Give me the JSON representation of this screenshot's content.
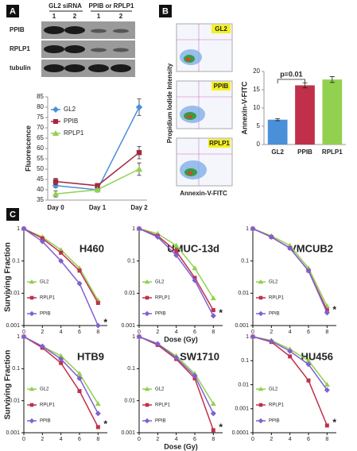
{
  "panels": [
    "A",
    "B",
    "C"
  ],
  "blot": {
    "group_labels": [
      "GL2 siRNA",
      "PPIB or RPLP1"
    ],
    "lanes": [
      "1",
      "2",
      "1",
      "2"
    ],
    "rows": [
      "PPIB",
      "RPLP1",
      "tubulin"
    ]
  },
  "flow": {
    "samples": [
      "GL2",
      "PPIB",
      "RPLP1"
    ],
    "ylabel": "Propidium Iodide Intensity",
    "xlabel": "Annexin-V-FITC"
  },
  "chart_data": [
    {
      "type": "line",
      "categories": [
        "Day 0",
        "Day 1",
        "Day 2"
      ],
      "ylim": [
        35,
        85
      ],
      "yticks": [
        35,
        40,
        45,
        50,
        55,
        60,
        65,
        70,
        75,
        80,
        85
      ],
      "ylabel": "Fluorescence",
      "series": [
        {
          "name": "GL2",
          "color": "#4a90d9",
          "marker": "diamond",
          "values": [
            42,
            40,
            80
          ],
          "errors": [
            1,
            1,
            4
          ]
        },
        {
          "name": "PPIB",
          "color": "#a6263f",
          "marker": "square",
          "values": [
            44,
            42,
            58
          ],
          "errors": [
            1.5,
            1,
            3
          ]
        },
        {
          "name": "RPLP1",
          "color": "#92d050",
          "marker": "triangle",
          "values": [
            38,
            40,
            50
          ],
          "errors": [
            1.5,
            1,
            3
          ]
        }
      ]
    },
    {
      "type": "bar",
      "categories": [
        "GL2",
        "PPIB",
        "RPLP1"
      ],
      "values": [
        6.8,
        16.2,
        17.8
      ],
      "errors": [
        0.3,
        0.7,
        0.8
      ],
      "colors": [
        "#4a90d9",
        "#c0304a",
        "#92d050"
      ],
      "ylim": [
        0,
        20
      ],
      "yticks": [
        0,
        5,
        10,
        15,
        20
      ],
      "ylabel": "Annexin-V-FITC",
      "annotation": "p=0.01"
    },
    {
      "type": "line",
      "title": "H460",
      "x": [
        0,
        2,
        4,
        6,
        8
      ],
      "xlim": [
        0,
        9
      ],
      "xticks": [
        0,
        2,
        4,
        6,
        8
      ],
      "ylim": [
        0.001,
        1
      ],
      "yticks": [
        1,
        0.1,
        0.01,
        0.001
      ],
      "log_scale": true,
      "ylabel": "Surviving Fraction",
      "annotation": "*",
      "series": [
        {
          "name": "GL2",
          "color": "#92d050",
          "marker": "triangle",
          "values": [
            1,
            0.55,
            0.22,
            0.06,
            0.006
          ]
        },
        {
          "name": "RPLP1",
          "color": "#c0304a",
          "marker": "square",
          "values": [
            1,
            0.5,
            0.18,
            0.05,
            0.005
          ]
        },
        {
          "name": "PPIB",
          "color": "#8060d0",
          "marker": "diamond",
          "values": [
            1,
            0.4,
            0.1,
            0.02,
            0.001
          ]
        }
      ]
    },
    {
      "type": "line",
      "title": "UMUC-13d",
      "x": [
        0,
        2,
        4,
        6,
        8
      ],
      "xlim": [
        0,
        9
      ],
      "xticks": [
        0,
        2,
        4,
        6,
        8
      ],
      "ylim": [
        0.001,
        1
      ],
      "yticks": [
        1,
        0.1,
        0.01,
        0.001
      ],
      "log_scale": true,
      "xlabel": "Dose (Gy)",
      "annotation": "*",
      "series": [
        {
          "name": "GL2",
          "color": "#92d050",
          "marker": "triangle",
          "values": [
            1,
            0.7,
            0.3,
            0.06,
            0.007
          ]
        },
        {
          "name": "RPLP1",
          "color": "#c0304a",
          "marker": "square",
          "values": [
            1,
            0.6,
            0.2,
            0.03,
            0.003
          ]
        },
        {
          "name": "PPIB",
          "color": "#8060d0",
          "marker": "diamond",
          "values": [
            1,
            0.55,
            0.15,
            0.025,
            0.002
          ]
        }
      ]
    },
    {
      "type": "line",
      "title": "VMCUB2",
      "x": [
        0,
        2,
        4,
        6,
        8
      ],
      "xlim": [
        0,
        9
      ],
      "xticks": [
        0,
        2,
        4,
        6,
        8
      ],
      "ylim": [
        0.001,
        1
      ],
      "yticks": [
        1,
        0.1,
        0.01,
        0.001
      ],
      "log_scale": true,
      "annotation": "*",
      "series": [
        {
          "name": "GL2",
          "color": "#92d050",
          "marker": "triangle",
          "values": [
            1,
            0.6,
            0.3,
            0.06,
            0.004
          ]
        },
        {
          "name": "RPLP1",
          "color": "#c0304a",
          "marker": "square",
          "values": [
            1,
            0.55,
            0.25,
            0.05,
            0.003
          ]
        },
        {
          "name": "PPIB",
          "color": "#8060d0",
          "marker": "diamond",
          "values": [
            1,
            0.55,
            0.25,
            0.05,
            0.0025
          ]
        }
      ]
    },
    {
      "type": "line",
      "title": "HTB9",
      "x": [
        0,
        2,
        4,
        6,
        8
      ],
      "xlim": [
        0,
        9
      ],
      "xticks": [
        0,
        2,
        4,
        6,
        8
      ],
      "ylim": [
        0.001,
        1
      ],
      "yticks": [
        1,
        0.1,
        0.01,
        0.001
      ],
      "log_scale": true,
      "ylabel": "Surviving Fraction",
      "annotation": "*",
      "series": [
        {
          "name": "GL2",
          "color": "#92d050",
          "marker": "triangle",
          "values": [
            1,
            0.5,
            0.25,
            0.07,
            0.008
          ]
        },
        {
          "name": "RPLP1",
          "color": "#c0304a",
          "marker": "square",
          "values": [
            1,
            0.45,
            0.15,
            0.02,
            0.0015
          ]
        },
        {
          "name": "PPIB",
          "color": "#8060d0",
          "marker": "diamond",
          "values": [
            1,
            0.5,
            0.2,
            0.05,
            0.004
          ]
        }
      ]
    },
    {
      "type": "line",
      "title": "SW1710",
      "x": [
        0,
        2,
        4,
        6,
        8
      ],
      "xlim": [
        0,
        9
      ],
      "xticks": [
        0,
        2,
        4,
        6,
        8
      ],
      "ylim": [
        0.001,
        1
      ],
      "yticks": [
        1,
        0.1,
        0.01,
        0.001
      ],
      "log_scale": true,
      "xlabel": "Dose (Gy)",
      "annotation": "*",
      "series": [
        {
          "name": "GL2",
          "color": "#92d050",
          "marker": "triangle",
          "values": [
            1,
            0.6,
            0.25,
            0.07,
            0.008
          ]
        },
        {
          "name": "RPLP1",
          "color": "#c0304a",
          "marker": "square",
          "values": [
            1,
            0.55,
            0.2,
            0.05,
            0.0012
          ]
        },
        {
          "name": "PPIB",
          "color": "#8060d0",
          "marker": "diamond",
          "values": [
            1,
            0.6,
            0.22,
            0.06,
            0.004
          ]
        }
      ]
    },
    {
      "type": "line",
      "title": "HU456",
      "x": [
        0,
        2,
        4,
        6,
        8
      ],
      "xlim": [
        0,
        9
      ],
      "xticks": [
        0,
        2,
        4,
        6,
        8
      ],
      "ylim": [
        0.0001,
        1
      ],
      "yticks": [
        1,
        0.1,
        0.01,
        0.001,
        0.0001
      ],
      "log_scale": true,
      "annotation": "*",
      "series": [
        {
          "name": "GL2",
          "color": "#92d050",
          "marker": "triangle",
          "values": [
            1,
            0.7,
            0.3,
            0.1,
            0.01
          ]
        },
        {
          "name": "RPLP1",
          "color": "#c0304a",
          "marker": "square",
          "values": [
            1,
            0.6,
            0.15,
            0.015,
            0.0002
          ]
        },
        {
          "name": "PPIB",
          "color": "#8060d0",
          "marker": "diamond",
          "values": [
            1,
            0.65,
            0.25,
            0.07,
            0.006
          ]
        }
      ]
    }
  ]
}
